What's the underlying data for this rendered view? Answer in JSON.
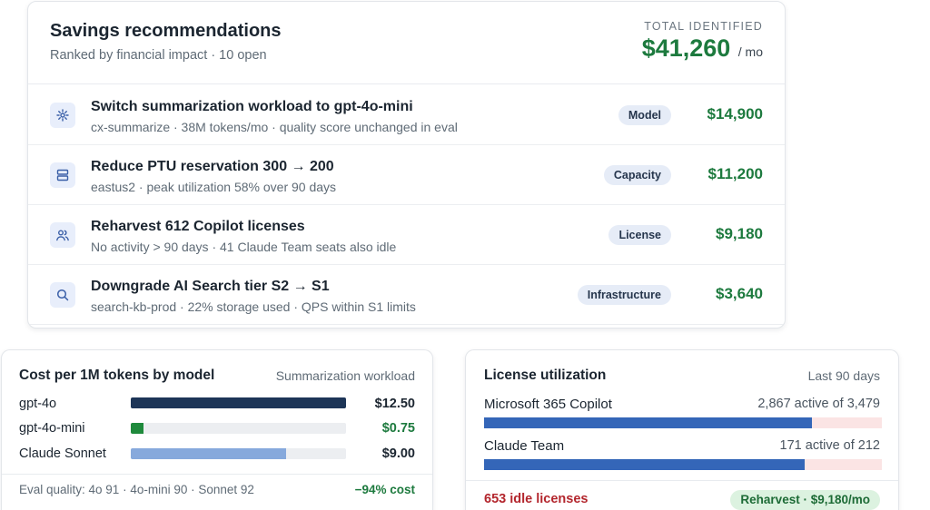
{
  "recommendations": {
    "title": "Savings recommendations",
    "subtitle": "Ranked by financial impact · 10 open",
    "total_label": "TOTAL IDENTIFIED",
    "total_value": "$41,260",
    "total_unit": "/ mo",
    "items": [
      {
        "icon": "sparkle-icon",
        "title": "Switch summarization workload to gpt-4o-mini",
        "meta": "cx-summarize · 38M tokens/mo · quality score unchanged in eval",
        "badge": "Model",
        "amount": "$14,900"
      },
      {
        "icon": "server-icon",
        "title": "Reduce PTU reservation 300 → 200",
        "meta": "eastus2 · peak utilization 58% over 90 days",
        "badge": "Capacity",
        "amount": "$11,200"
      },
      {
        "icon": "users-icon",
        "title": "Reharvest 612 Copilot licenses",
        "meta": "No activity > 90 days · 41 Claude Team seats also idle",
        "badge": "License",
        "amount": "$9,180"
      },
      {
        "icon": "search-icon",
        "title": "Downgrade AI Search tier S2 → S1",
        "meta": "search-kb-prod · 22% storage used · QPS within S1 limits",
        "badge": "Infrastructure",
        "amount": "$3,640"
      }
    ]
  },
  "cost_panel": {
    "title": "Cost per 1M tokens by model",
    "note": "Summarization workload",
    "colors": {
      "gpt-4o": "#1d3557",
      "gpt-4o-mini": "#1f8a3c",
      "Claude Sonnet": "#86a9dc"
    },
    "models": [
      {
        "name": "gpt-4o",
        "value": "$12.50",
        "amount": 12.5
      },
      {
        "name": "gpt-4o-mini",
        "value": "$0.75",
        "amount": 0.75
      },
      {
        "name": "Claude Sonnet",
        "value": "$9.00",
        "amount": 9.0
      }
    ],
    "footer_left": "Eval quality: 4o 91 · 4o-mini 90 · Sonnet 92",
    "footer_right": "−94% cost"
  },
  "license_panel": {
    "title": "License utilization",
    "note": "Last 90 days",
    "items": [
      {
        "name": "Microsoft 365 Copilot",
        "count": "2,867 active of 3,479",
        "active": 2867,
        "total": 3479
      },
      {
        "name": "Claude Team",
        "count": "171 active of 212",
        "active": 171,
        "total": 212
      }
    ],
    "idle_text": "653 idle licenses",
    "action_label": "Reharvest · $9,180/mo"
  }
}
